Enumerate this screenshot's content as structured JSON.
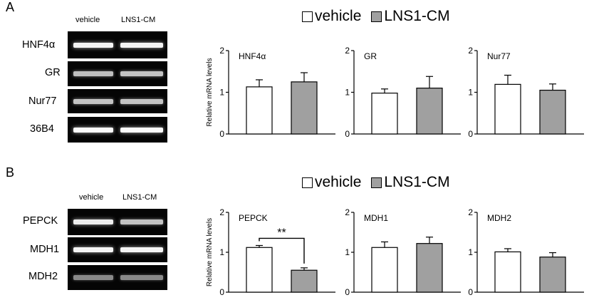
{
  "panels": [
    {
      "letter": "A",
      "lane_headers": [
        "vehicle",
        "LNS1-CM"
      ],
      "gel_rows": [
        {
          "label": "HNF4α",
          "intensity": [
            0.95,
            0.95
          ]
        },
        {
          "label": "GR",
          "intensity": [
            0.7,
            0.72
          ]
        },
        {
          "label": "Nur77",
          "intensity": [
            0.72,
            0.72
          ]
        },
        {
          "label": "36B4",
          "intensity": [
            0.98,
            0.98
          ]
        }
      ],
      "legend": [
        "vehicle",
        "LNS1-CM"
      ]
    },
    {
      "letter": "B",
      "lane_headers": [
        "vehicle",
        "LNS1-CM"
      ],
      "gel_rows": [
        {
          "label": "PEPCK",
          "intensity": [
            0.92,
            0.72
          ]
        },
        {
          "label": "MDH1",
          "intensity": [
            0.95,
            0.95
          ]
        },
        {
          "label": "MDH2",
          "intensity": [
            0.45,
            0.45
          ]
        }
      ],
      "legend": [
        "vehicle",
        "LNS1-CM"
      ]
    }
  ],
  "colors": {
    "vehicle_fill": "#ffffff",
    "lns1_fill": "#a0a0a0",
    "bar_stroke": "#000000",
    "gel_background": "#050505"
  },
  "chart_data": [
    {
      "type": "bar",
      "title": "HNF4α",
      "ylabel": "Relative mRNA levels",
      "ylim": [
        0,
        2
      ],
      "yticks": [
        "0",
        "1",
        "2"
      ],
      "series": [
        {
          "name": "vehicle",
          "values": [
            1.13
          ]
        },
        {
          "name": "LNS1-CM",
          "values": [
            1.25
          ]
        }
      ],
      "errors": [
        0.17,
        0.22
      ]
    },
    {
      "type": "bar",
      "title": "GR",
      "ylabel": "",
      "ylim": [
        0,
        2
      ],
      "yticks": [
        "0",
        "1",
        "2"
      ],
      "series": [
        {
          "name": "vehicle",
          "values": [
            0.98
          ]
        },
        {
          "name": "LNS1-CM",
          "values": [
            1.1
          ]
        }
      ],
      "errors": [
        0.1,
        0.28
      ]
    },
    {
      "type": "bar",
      "title": "Nur77",
      "ylabel": "",
      "ylim": [
        0,
        2
      ],
      "yticks": [
        "0",
        "1",
        "2"
      ],
      "series": [
        {
          "name": "vehicle",
          "values": [
            1.19
          ]
        },
        {
          "name": "LNS1-CM",
          "values": [
            1.05
          ]
        }
      ],
      "errors": [
        0.22,
        0.15
      ]
    },
    {
      "type": "bar",
      "title": "PEPCK",
      "ylabel": "Relative mRNA levels",
      "ylim": [
        0,
        2
      ],
      "yticks": [
        "0",
        "1",
        "2"
      ],
      "series": [
        {
          "name": "vehicle",
          "values": [
            1.12
          ]
        },
        {
          "name": "LNS1-CM",
          "values": [
            0.55
          ]
        }
      ],
      "errors": [
        0.05,
        0.06
      ],
      "significance": "**"
    },
    {
      "type": "bar",
      "title": "MDH1",
      "ylabel": "",
      "ylim": [
        0,
        2
      ],
      "yticks": [
        "0",
        "1",
        "2"
      ],
      "series": [
        {
          "name": "vehicle",
          "values": [
            1.12
          ]
        },
        {
          "name": "LNS1-CM",
          "values": [
            1.22
          ]
        }
      ],
      "errors": [
        0.14,
        0.16
      ]
    },
    {
      "type": "bar",
      "title": "MDH2",
      "ylabel": "",
      "ylim": [
        0,
        2
      ],
      "yticks": [
        "0",
        "1",
        "2"
      ],
      "series": [
        {
          "name": "vehicle",
          "values": [
            1.01
          ]
        },
        {
          "name": "LNS1-CM",
          "values": [
            0.88
          ]
        }
      ],
      "errors": [
        0.08,
        0.11
      ]
    }
  ]
}
